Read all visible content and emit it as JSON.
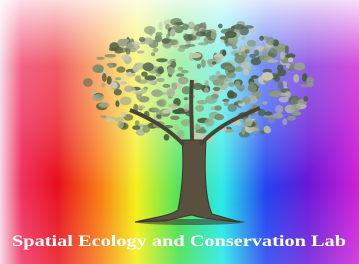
{
  "logo": {
    "text": "Spatial Ecology and Conservation Lab"
  }
}
